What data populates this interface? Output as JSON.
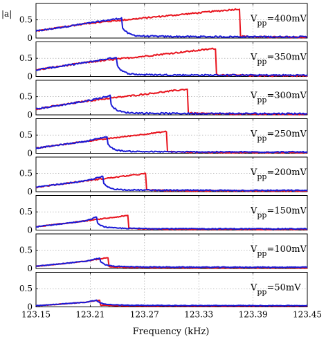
{
  "chart_data": {
    "type": "line",
    "ylabel": "|a|",
    "xlabel": "Frequency (kHz)",
    "xlim": [
      123.15,
      123.45
    ],
    "ylim": [
      0,
      0.95
    ],
    "x_ticks": [
      "123.15",
      "123.21",
      "123.27",
      "123.33",
      "123.39",
      "123.45"
    ],
    "y_ticks": [
      "0",
      "0.5"
    ],
    "grid": true,
    "label_prefix": "V",
    "label_sub": "pp",
    "series_colors": {
      "up_sweep": "#e8141e",
      "down_sweep": "#1a1ad6"
    },
    "panels": [
      {
        "vpp": "=400mV",
        "peak_freq": 123.375,
        "peak_amp": 0.8,
        "jump_freq": 123.245,
        "jump_amp": 0.55,
        "start_amp": 0.19,
        "noise": 0.02
      },
      {
        "vpp": "=350mV",
        "peak_freq": 123.349,
        "peak_amp": 0.77,
        "jump_freq": 123.24,
        "jump_amp": 0.53,
        "start_amp": 0.18,
        "noise": 0.02
      },
      {
        "vpp": "=300mV",
        "peak_freq": 123.318,
        "peak_amp": 0.71,
        "jump_freq": 123.233,
        "jump_amp": 0.53,
        "start_amp": 0.16,
        "noise": 0.02
      },
      {
        "vpp": "=250mV",
        "peak_freq": 123.295,
        "peak_amp": 0.6,
        "jump_freq": 123.229,
        "jump_amp": 0.46,
        "start_amp": 0.14,
        "noise": 0.015
      },
      {
        "vpp": "=200mV",
        "peak_freq": 123.272,
        "peak_amp": 0.5,
        "jump_freq": 123.224,
        "jump_amp": 0.42,
        "start_amp": 0.12,
        "noise": 0.015
      },
      {
        "vpp": "=150mV",
        "peak_freq": 123.252,
        "peak_amp": 0.4,
        "jump_freq": 123.217,
        "jump_amp": 0.36,
        "start_amp": 0.09,
        "noise": 0.012
      },
      {
        "vpp": "=100mV",
        "peak_freq": 123.23,
        "peak_amp": 0.3,
        "jump_freq": 123.221,
        "jump_amp": 0.29,
        "start_amp": 0.06,
        "noise": 0.01
      },
      {
        "vpp": "=50mV",
        "peak_freq": 123.221,
        "peak_amp": 0.19,
        "jump_freq": 123.218,
        "jump_amp": 0.19,
        "start_amp": 0.03,
        "noise": 0.008
      }
    ]
  }
}
